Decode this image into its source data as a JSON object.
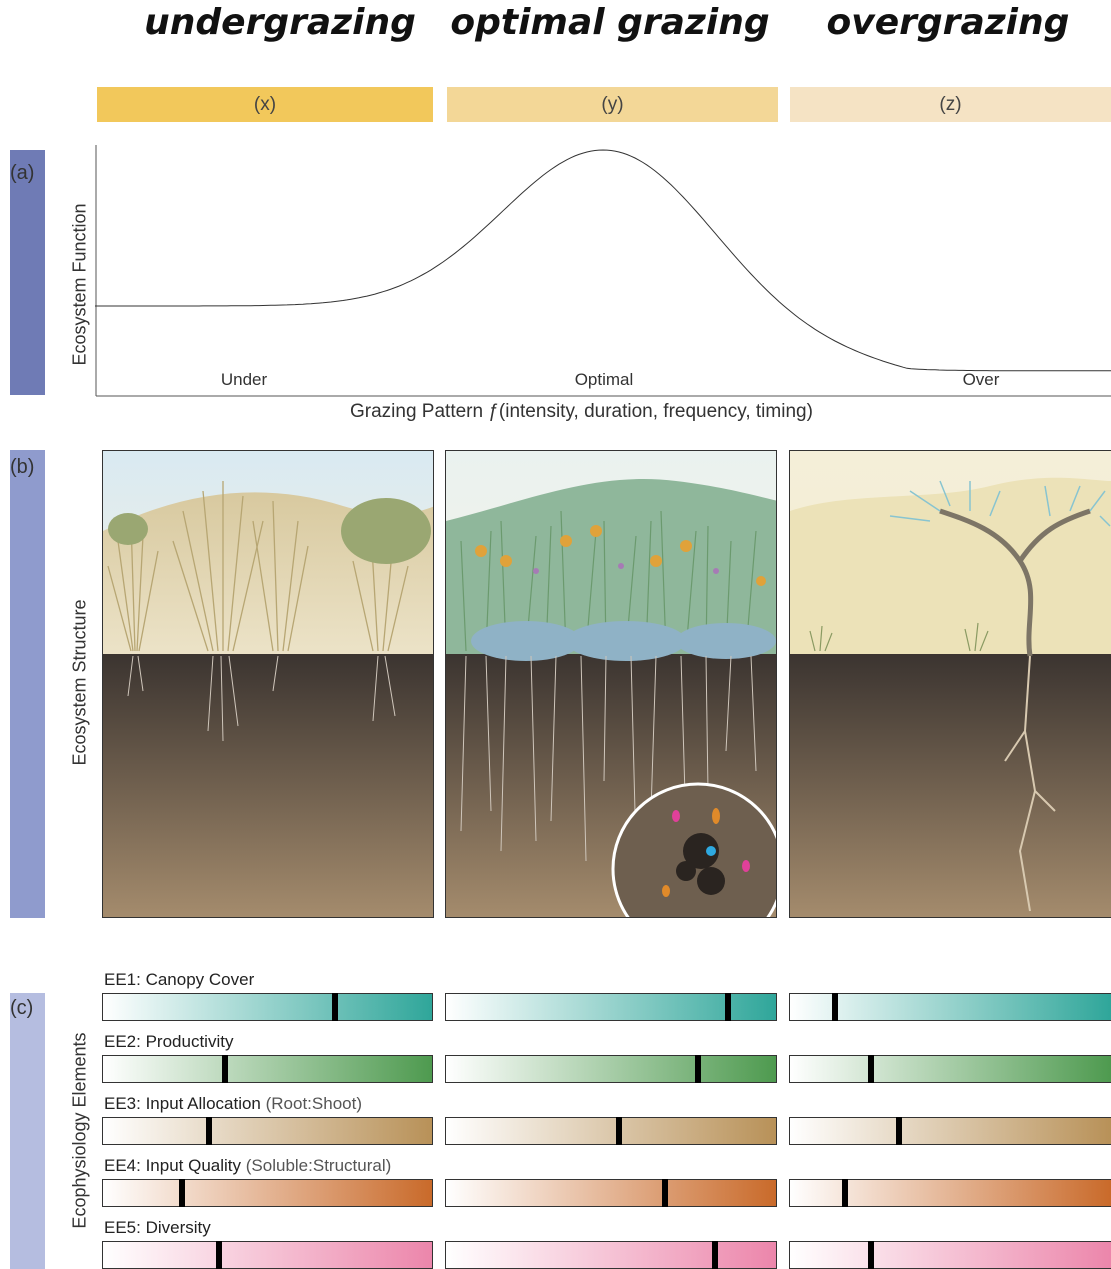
{
  "titles": {
    "undergrazing": "undergrazing",
    "optimal": "optimal grazing",
    "overgrazing": "overgrazing"
  },
  "bands": [
    {
      "label": "(x)",
      "color": "#f2c85b"
    },
    {
      "label": "(y)",
      "color": "#f3d797"
    },
    {
      "label": "(z)",
      "color": "#f5e3c4"
    }
  ],
  "panel_a": {
    "letter": "(a)",
    "ylabel": "Ecosystem Function",
    "xlabel": "Grazing Pattern ƒ(intensity, duration, frequency, timing)",
    "ticks": [
      "Under",
      "Optimal",
      "Over"
    ],
    "sidebar_color": "#6f7bb5"
  },
  "chart_data": {
    "type": "line",
    "title": "",
    "xlabel": "Grazing Pattern ƒ(intensity, duration, frequency, timing)",
    "ylabel": "Ecosystem Function",
    "categories": [
      "Under",
      "Optimal",
      "Over"
    ],
    "x": [
      0.0,
      0.5,
      1.0
    ],
    "y": [
      0.35,
      1.0,
      0.08
    ],
    "grid": false
  },
  "panel_b": {
    "letter": "(b)",
    "ylabel": "Ecosystem Structure",
    "sidebar_color": "#8f9bcd"
  },
  "panel_c": {
    "letter": "(c)",
    "ylabel": "Ecophysiology Elements",
    "sidebar_color": "#b5bde0",
    "elements": [
      {
        "label": "EE1: Canopy Cover",
        "sub": "",
        "color": "#2fa69a",
        "levels": [
          0.7,
          0.85,
          0.14
        ]
      },
      {
        "label": "EE2: Productivity",
        "sub": "",
        "color": "#4e9a4f",
        "levels": [
          0.37,
          0.76,
          0.25
        ]
      },
      {
        "label": "EE3: Input Allocation",
        "sub": "(Root:Shoot)",
        "color": "#b89158",
        "levels": [
          0.32,
          0.52,
          0.34
        ]
      },
      {
        "label": "EE4: Input Quality",
        "sub": "(Soluble:Structural)",
        "color": "#c96a2a",
        "levels": [
          0.24,
          0.66,
          0.17
        ]
      },
      {
        "label": "EE5: Diversity",
        "sub": "",
        "color": "#ec86ab",
        "levels": [
          0.35,
          0.81,
          0.25
        ]
      }
    ]
  }
}
